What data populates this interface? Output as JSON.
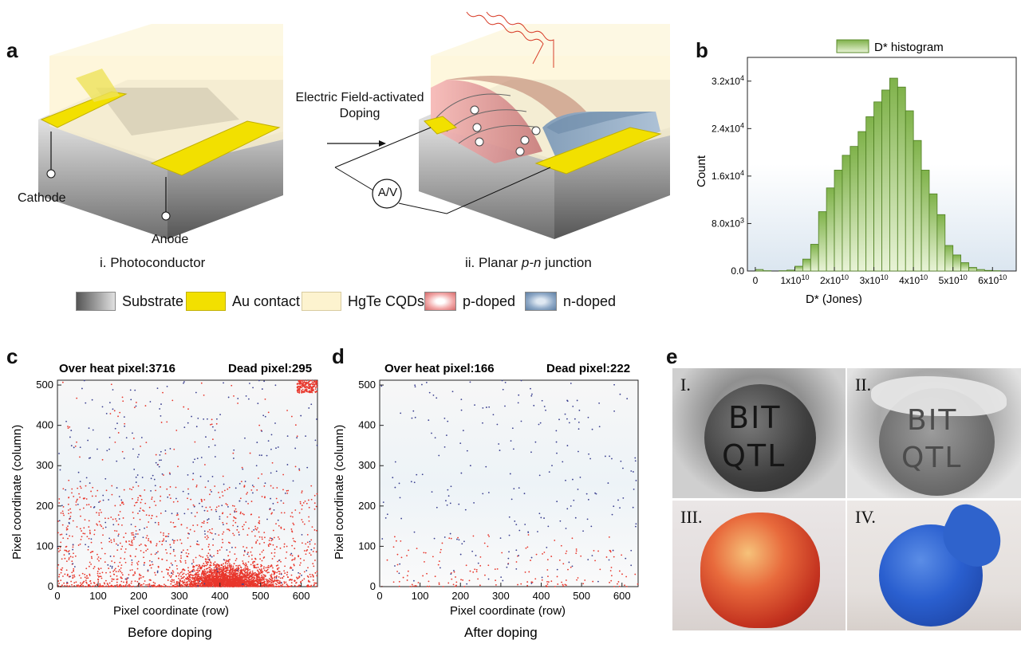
{
  "panel_labels": {
    "a": "a",
    "b": "b",
    "c": "c",
    "d": "d",
    "e": "e"
  },
  "panel_a": {
    "cathode": "Cathode",
    "anode": "Anode",
    "left_caption": "i. Photoconductor",
    "right_caption_pre": "ii. Planar ",
    "right_caption_em": "p-n",
    "right_caption_post": " junction",
    "arrow_line1": "Electric Field-activated",
    "arrow_line2": "Doping",
    "meter": "A/V"
  },
  "legend": [
    {
      "label": "Substrate",
      "color": "#8a8a8a"
    },
    {
      "label": "Au contact",
      "color": "#f2e000"
    },
    {
      "label": "HgTe CQDs",
      "color": "#fdf3cf"
    },
    {
      "label": "p-doped",
      "color": "#f2a8a8"
    },
    {
      "label": "n-doped",
      "color": "#8fa9c7"
    }
  ],
  "chart_data": [
    {
      "type": "bar",
      "legend": "D* histogram",
      "xlabel": "D* (Jones)",
      "ylabel": "Count",
      "xticks": [
        "0",
        "1x10^10",
        "2x10^10",
        "3x10^10",
        "4x10^10",
        "5x10^10",
        "6x10^10"
      ],
      "yticks": [
        "0.0",
        "8.0x10^3",
        "1.6x10^4",
        "2.4x10^4",
        "3.2x10^4"
      ],
      "xlim": [
        -2000000000.0,
        66000000000.0
      ],
      "ylim": [
        0,
        36000.0
      ],
      "bin_width": 2000000000.0,
      "bin_starts": [
        0,
        2000000000.0,
        4000000000.0,
        6000000000.0,
        8000000000.0,
        10000000000.0,
        12000000000.0,
        14000000000.0,
        16000000000.0,
        18000000000.0,
        20000000000.0,
        22000000000.0,
        24000000000.0,
        26000000000.0,
        28000000000.0,
        30000000000.0,
        32000000000.0,
        34000000000.0,
        36000000000.0,
        38000000000.0,
        40000000000.0,
        42000000000.0,
        44000000000.0,
        46000000000.0,
        48000000000.0,
        50000000000.0,
        52000000000.0,
        54000000000.0,
        56000000000.0,
        58000000000.0,
        60000000000.0
      ],
      "values": [
        250,
        50,
        0,
        50,
        150,
        800,
        2000,
        4500,
        10000,
        14000,
        17000,
        19500,
        21000,
        23500,
        26000,
        28500,
        30500,
        32500,
        31000,
        27000,
        22000,
        17000,
        13000,
        9500,
        4300,
        2700,
        1400,
        600,
        250,
        100,
        50
      ]
    },
    {
      "type": "scatter",
      "title_left": "Over heat pixel:3716",
      "title_right": "Dead pixel:295",
      "xlabel": "Pixel coordinate (row)",
      "ylabel": "Pixel coordinate (column)",
      "caption": "Before doping",
      "xlim": [
        0,
        640
      ],
      "ylim": [
        0,
        512
      ],
      "xticks": [
        0,
        100,
        200,
        300,
        400,
        500,
        600
      ],
      "yticks": [
        0,
        100,
        200,
        300,
        400,
        500
      ],
      "series": [
        {
          "name": "Over heat pixel",
          "count": 3716,
          "color": "#e8372c"
        },
        {
          "name": "Dead pixel",
          "count": 295,
          "color": "#3a3f8f"
        }
      ]
    },
    {
      "type": "scatter",
      "title_left": "Over heat pixel:166",
      "title_right": "Dead pixel:222",
      "xlabel": "Pixel coordinate (row)",
      "ylabel": "Pixel coordinate (column)",
      "caption": "After doping",
      "xlim": [
        0,
        640
      ],
      "ylim": [
        0,
        512
      ],
      "xticks": [
        0,
        100,
        200,
        300,
        400,
        500,
        600
      ],
      "yticks": [
        0,
        100,
        200,
        300,
        400,
        500
      ],
      "series": [
        {
          "name": "Over heat pixel",
          "count": 166,
          "color": "#e8372c"
        },
        {
          "name": "Dead pixel",
          "count": 222,
          "color": "#3a3f8f"
        }
      ]
    }
  ],
  "photos": [
    {
      "label": "I."
    },
    {
      "label": "II."
    },
    {
      "label": "III."
    },
    {
      "label": "IV."
    }
  ],
  "photo_text": {
    "i_line1": "BIT",
    "i_line2": "QTL",
    "ii_line1": "BIT",
    "ii_line2": "QTL"
  }
}
